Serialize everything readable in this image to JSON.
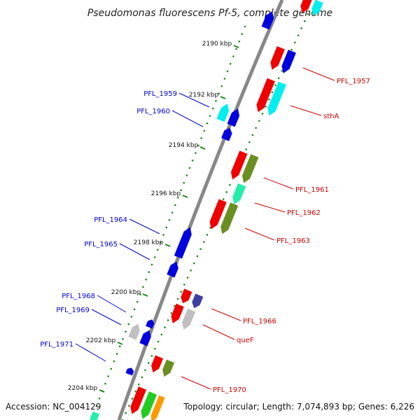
{
  "title": "Pseudomonas fluorescens Pf-5, complete genome",
  "footer": {
    "accession": "Accession: NC_004129",
    "stats": "Topology: circular; Length: 7,074,893 bp; Genes: 6,226"
  },
  "colors": {
    "backbone": "#888888",
    "tick": "#1a8a1a",
    "label_forward": "#cc0000",
    "label_reverse": "#0000cc",
    "red": "#ee0000",
    "blue": "#0000dd",
    "cyan": "#00eeee",
    "olive": "#6b8e23",
    "teal": "#22eeaa",
    "slate": "#3f3fa0",
    "grey": "#c0c0c0",
    "green": "#22cc22",
    "orange": "#ff9900"
  },
  "ticks": [
    "2190 kbp",
    "2192 kbp",
    "2194 kbp",
    "2196 kbp",
    "2198 kbp",
    "2200 kbp",
    "2202 kbp",
    "2204 kbp"
  ],
  "forward_labels": [
    "PFL_1957",
    "sthA",
    "PFL_1961",
    "PFL_1962",
    "PFL_1963",
    "PFL_1966",
    "queF",
    "PFL_1970"
  ],
  "reverse_labels": [
    "PFL_1959",
    "PFL_1960",
    "PFL_1964",
    "PFL_1965",
    "PFL_1968",
    "PFL_1969",
    "PFL_1971"
  ]
}
